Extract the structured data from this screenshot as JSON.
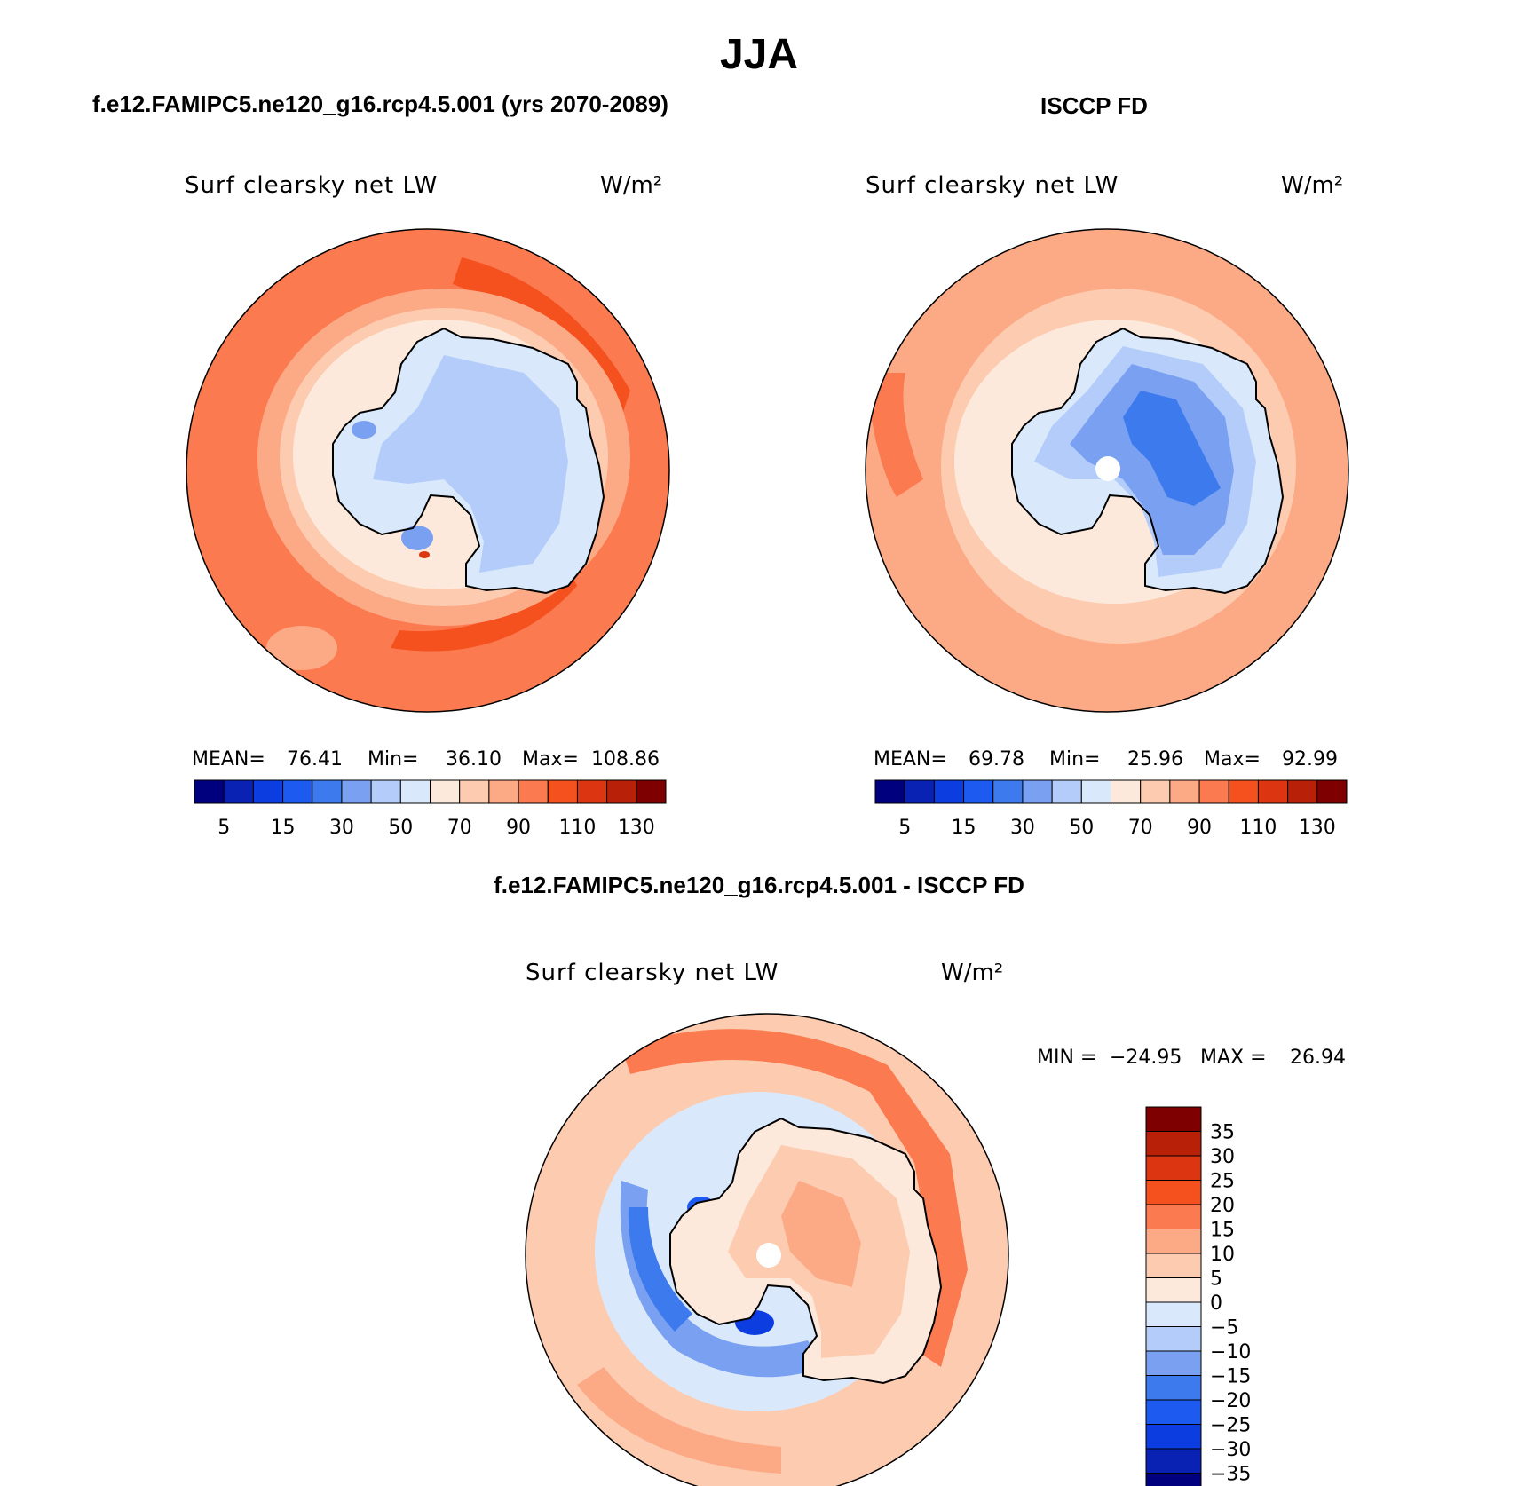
{
  "header": {
    "season": "JJA",
    "model_title": "f.e12.FAMIPC5.ne120_g16.rcp4.5.001 (yrs 2070-2089)",
    "obs_title": "ISCCP FD",
    "diff_title": "f.e12.FAMIPC5.ne120_g16.rcp4.5.001 - ISCCP FD"
  },
  "panels": {
    "model": {
      "variable": "Surf clearsky net LW",
      "units": "W/m²",
      "mean_label": "MEAN=",
      "mean": "76.41",
      "min_label": "Min=",
      "min": "36.10",
      "max_label": "Max=",
      "max": "108.86"
    },
    "obs": {
      "variable": "Surf clearsky net LW",
      "units": "W/m²",
      "mean_label": "MEAN=",
      "mean": "69.78",
      "min_label": "Min=",
      "min": "25.96",
      "max_label": "Max=",
      "max": "92.99"
    },
    "diff": {
      "variable": "Surf clearsky net LW",
      "units": "W/m²",
      "min_label": "MIN =",
      "min": "−24.95",
      "max_label": "MAX =",
      "max": "26.94"
    }
  },
  "chart_data": [
    {
      "type": "heatmap",
      "projection": "south polar stereographic",
      "title": "Surf clearsky net LW",
      "units": "W/m²",
      "region": "Antarctica",
      "mean": 76.41,
      "min": 36.1,
      "max": 108.86,
      "colorbar": {
        "levels": [
          5,
          10,
          15,
          20,
          30,
          40,
          50,
          60,
          70,
          80,
          90,
          100,
          110,
          120,
          130
        ],
        "tick_labels": [
          "5",
          "15",
          "30",
          "50",
          "70",
          "90",
          "110",
          "130"
        ],
        "colors": [
          "#00007f",
          "#0a22b4",
          "#0c3de0",
          "#1c5af0",
          "#3c7aee",
          "#7aa0f2",
          "#b4ccfa",
          "#d9e9fb",
          "#fde9dc",
          "#fdcbb0",
          "#fca985",
          "#fb7a50",
          "#f5511e",
          "#dc3512",
          "#b82008",
          "#7e0000"
        ]
      }
    },
    {
      "type": "heatmap",
      "projection": "south polar stereographic",
      "title": "Surf clearsky net LW",
      "units": "W/m²",
      "region": "Antarctica",
      "mean": 69.78,
      "min": 25.96,
      "max": 92.99,
      "colorbar": {
        "levels": [
          5,
          10,
          15,
          20,
          30,
          40,
          50,
          60,
          70,
          80,
          90,
          100,
          110,
          120,
          130
        ],
        "tick_labels": [
          "5",
          "15",
          "30",
          "50",
          "70",
          "90",
          "110",
          "130"
        ],
        "colors": [
          "#00007f",
          "#0a22b4",
          "#0c3de0",
          "#1c5af0",
          "#3c7aee",
          "#7aa0f2",
          "#b4ccfa",
          "#d9e9fb",
          "#fde9dc",
          "#fdcbb0",
          "#fca985",
          "#fb7a50",
          "#f5511e",
          "#dc3512",
          "#b82008",
          "#7e0000"
        ]
      }
    },
    {
      "type": "heatmap",
      "projection": "south polar stereographic",
      "title": "Surf clearsky net LW",
      "units": "W/m²",
      "region": "Antarctica",
      "min": -24.95,
      "max": 26.94,
      "colorbar": {
        "tick_labels": [
          "35",
          "30",
          "25",
          "20",
          "15",
          "10",
          "5",
          "0",
          "−5",
          "−10",
          "−15",
          "−20",
          "−25",
          "−30",
          "−35"
        ],
        "colors": [
          "#7e0000",
          "#b82008",
          "#dc3512",
          "#f5511e",
          "#fb7a50",
          "#fca985",
          "#fdcbb0",
          "#fde9dc",
          "#d9e9fb",
          "#b4ccfa",
          "#7aa0f2",
          "#3c7aee",
          "#1c5af0",
          "#0c3de0",
          "#0a22b4",
          "#00007f"
        ]
      }
    }
  ]
}
